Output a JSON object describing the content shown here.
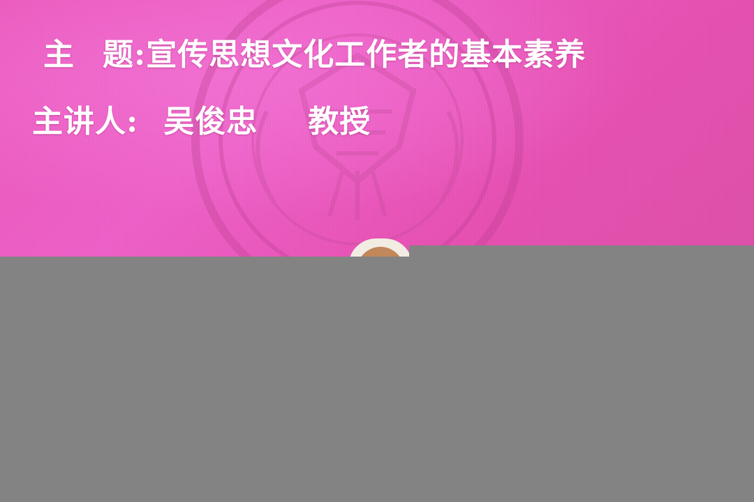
{
  "slide": {
    "topic_label": "主",
    "topic_label_2": "题:",
    "topic_text": "宣传思想文化工作者的基本素养",
    "speaker_label": "主讲人:",
    "speaker_name": "吴俊忠",
    "speaker_title": "教授"
  },
  "colors": {
    "screen_pink": "#e957b9",
    "text": "#ffffff",
    "lower_gray": "#838383"
  }
}
